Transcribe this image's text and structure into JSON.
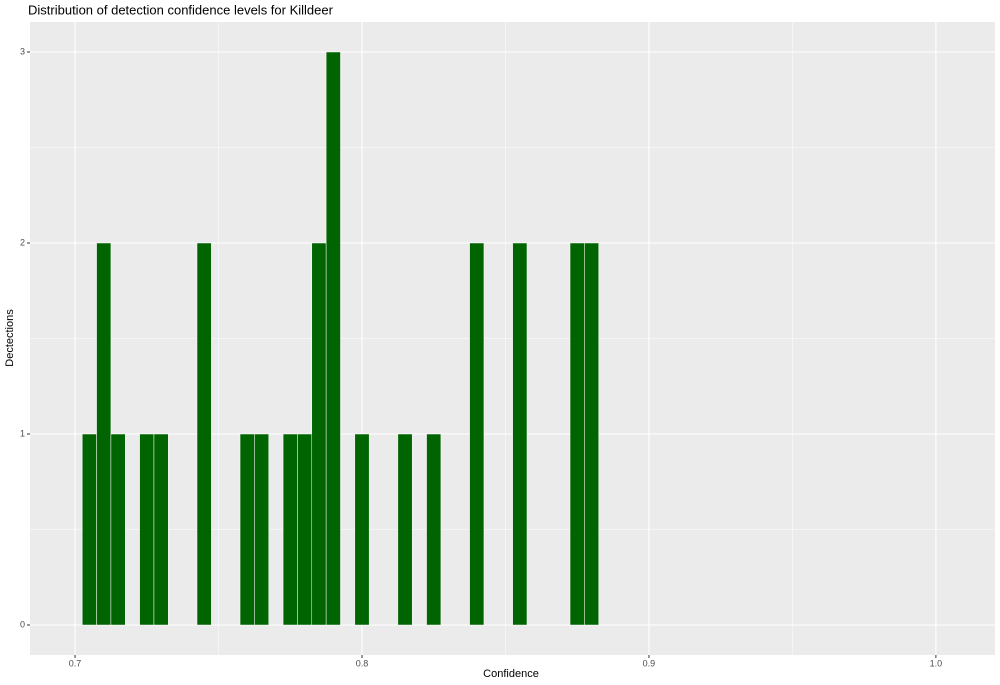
{
  "chart_data": {
    "type": "histogram",
    "title": "Distribution of detection confidence levels for Killdeer",
    "x_label": "Confidence",
    "y_label": "Dectections",
    "bins": [
      0.7025,
      0.7075,
      0.7125,
      0.7175,
      0.7225,
      0.7275,
      0.7325,
      0.7375,
      0.7425,
      0.7475,
      0.7525,
      0.7575,
      0.7625,
      0.7675,
      0.7725,
      0.7775,
      0.7825,
      0.7875,
      0.7925,
      0.7975,
      0.8025,
      0.8075,
      0.8125,
      0.8175,
      0.8225,
      0.8275,
      0.8325,
      0.8375,
      0.8425,
      0.8475,
      0.8525,
      0.8575,
      0.8625,
      0.8675,
      0.8725,
      0.8775,
      0.8825
    ],
    "counts": [
      1,
      2,
      1,
      0,
      1,
      1,
      0,
      0,
      2,
      0,
      0,
      1,
      1,
      0,
      1,
      1,
      2,
      3,
      0,
      1,
      0,
      0,
      1,
      0,
      1,
      0,
      0,
      2,
      0,
      0,
      2,
      0,
      0,
      0,
      2,
      2
    ],
    "color": "#006400",
    "xlim": [
      0.6843,
      1.0206
    ],
    "ylim": [
      -0.157,
      3.157
    ],
    "xticks": [
      0.7,
      0.8,
      0.9,
      {
        "value": 1,
        "label": "1.0"
      }
    ],
    "yticks": [
      0,
      1,
      2,
      3
    ],
    "grid": true
  }
}
